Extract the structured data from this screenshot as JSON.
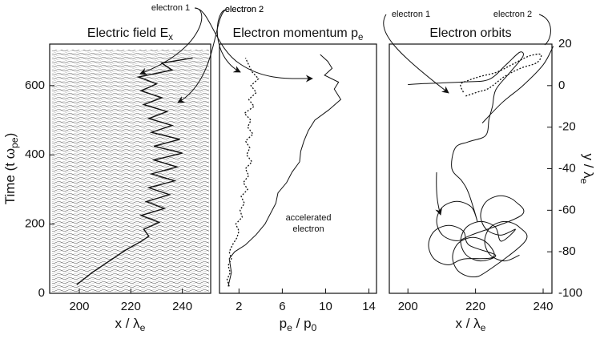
{
  "chart_data": [
    {
      "type": "line",
      "title": [
        {
          "text": "Electric field  E"
        },
        {
          "text": "x",
          "sub": true
        }
      ],
      "xlabel": [
        {
          "text": "x / λ"
        },
        {
          "text": "e",
          "sub": true
        }
      ],
      "ylabel": [
        {
          "text": "Time  (t ω"
        },
        {
          "text": "pe",
          "sub": true
        },
        {
          "text": ")"
        }
      ],
      "xlim": [
        188.5,
        251
      ],
      "ylim": [
        0,
        720
      ],
      "xticks": [
        200,
        220,
        240
      ],
      "yticks": [
        0,
        200,
        400,
        600
      ],
      "yaxis_side": "left",
      "background": "field",
      "annotations": [
        "electron 1",
        "electron 2"
      ],
      "series": [
        {
          "color": "#111111",
          "width": 1.4,
          "dash": false,
          "x": [
            199,
            205,
            212,
            218,
            224,
            227,
            225,
            231,
            224,
            233,
            226,
            235,
            227,
            237,
            228,
            238,
            229,
            240,
            229,
            239,
            228,
            236,
            227,
            234,
            225,
            232,
            224,
            230,
            223,
            236,
            232,
            244
          ],
          "values": [
            25,
            60,
            95,
            125,
            150,
            165,
            185,
            205,
            225,
            245,
            265,
            285,
            305,
            325,
            345,
            365,
            385,
            405,
            425,
            445,
            465,
            485,
            505,
            525,
            545,
            565,
            585,
            605,
            625,
            645,
            665,
            680
          ]
        }
      ]
    },
    {
      "type": "line",
      "title": [
        {
          "text": "Electron momentum p"
        },
        {
          "text": "e",
          "sub": true
        }
      ],
      "xlabel": [
        {
          "text": "p"
        },
        {
          "text": "e",
          "sub": true
        },
        {
          "text": " / p"
        },
        {
          "text": "0",
          "sub": true
        }
      ],
      "xlim": [
        0.2,
        14.7
      ],
      "ylim": [
        0,
        720
      ],
      "xticks": [
        2,
        6,
        10,
        14
      ],
      "yticks": [],
      "yaxis_side": "left",
      "annotations": [
        "electron 2",
        "accelerated",
        "electron"
      ],
      "series": [
        {
          "color": "#111111",
          "width": 1.3,
          "dash": true,
          "x": [
            1.1,
            0.9,
            1.2,
            1.0,
            1.3,
            1.1,
            1.4,
            1.8,
            2.0,
            1.7,
            2.3,
            2.1,
            2.5,
            2.2,
            2.8,
            2.4,
            2.9,
            2.6,
            3.2,
            2.7,
            3.0,
            2.6,
            3.3,
            2.8,
            3.1,
            2.5,
            3.4,
            2.9,
            3.6,
            3.1,
            3.8,
            3.2,
            2.9,
            2.6
          ],
          "values": [
            20,
            40,
            60,
            80,
            100,
            120,
            140,
            160,
            180,
            200,
            220,
            240,
            260,
            280,
            300,
            320,
            340,
            360,
            380,
            400,
            420,
            440,
            460,
            480,
            500,
            520,
            540,
            560,
            580,
            600,
            620,
            640,
            660,
            680
          ]
        },
        {
          "color": "#111111",
          "width": 1,
          "dash": false,
          "x": [
            1.0,
            1.3,
            1.1,
            1.6,
            2.6,
            3.6,
            4.4,
            4.9,
            5.4,
            5.6,
            6.4,
            6.9,
            7.6,
            7.7,
            8.0,
            8.4,
            9.0,
            10.3,
            11.4,
            10.8,
            11.2,
            9.9,
            10.6,
            10.2,
            9.5
          ],
          "values": [
            20,
            60,
            100,
            120,
            140,
            170,
            200,
            230,
            260,
            290,
            320,
            350,
            380,
            410,
            440,
            470,
            500,
            530,
            560,
            590,
            610,
            630,
            650,
            670,
            690
          ]
        }
      ]
    },
    {
      "type": "line",
      "title": [
        {
          "text": "Electron orbits"
        }
      ],
      "xlabel": [
        {
          "text": "x / λ"
        },
        {
          "text": "e",
          "sub": true
        }
      ],
      "ylabel": [
        {
          "text": "y / λ"
        },
        {
          "text": "e",
          "sub": true
        }
      ],
      "xlim": [
        194.5,
        242.6
      ],
      "ylim": [
        -100,
        20
      ],
      "xticks": [
        200,
        220,
        240
      ],
      "yticks": [
        20,
        0,
        -20,
        -40,
        -60,
        -80,
        -100
      ],
      "yaxis_side": "right",
      "annotations": [
        "electron 1",
        "electron 2"
      ],
      "series": [
        {
          "color": "#111111",
          "width": 1,
          "dash": false,
          "smooth": true,
          "x": [
            200,
            205,
            210,
            217,
            224,
            229,
            233,
            234,
            230,
            226,
            225,
            224,
            223,
            218,
            214,
            213,
            216,
            218,
            220.5,
            218.8,
            214.5,
            210.2,
            208.5,
            210.2,
            214.5,
            218.8,
            233.5,
            231.8,
            227.5,
            223.2,
            221.5,
            223.2,
            227.5,
            231.8,
            227.6,
            225.9,
            221.6,
            217.3,
            215.6,
            217.3,
            221.6,
            225.9,
            218.1,
            216.4,
            212.1,
            207.8,
            206.1,
            207.8,
            212.1,
            216.4,
            225.2,
            223.5,
            219.2,
            214.9,
            213.2,
            214.9,
            219.2,
            223.5,
            234.7,
            233,
            228.7,
            224.4,
            222.7,
            224.4,
            228.7,
            233
          ],
          "values": [
            0.5,
            1,
            1.3,
            1.8,
            3,
            10,
            16,
            14,
            6,
            -2,
            -10,
            -16,
            -24,
            -27,
            -30,
            -40,
            -46,
            -52,
            -65.2,
            -58.5,
            -55.7,
            -58.5,
            -65.2,
            -71.9,
            -74.7,
            -71.9,
            -62.5,
            -55.8,
            -53,
            -55.8,
            -62.5,
            -69.2,
            -72,
            -69.2,
            -74.9,
            -68.2,
            -65.4,
            -68.2,
            -74.9,
            -81.6,
            -84.4,
            -81.6,
            -76.8,
            -70.1,
            -67.3,
            -70.1,
            -76.8,
            -83.5,
            -86.3,
            -83.5,
            -82.6,
            -75.9,
            -73.1,
            -75.9,
            -82.6,
            -89.3,
            -92.1,
            -89.3,
            -74.9,
            -68.2,
            -65.4,
            -68.2,
            -74.9,
            -81.6,
            -84.4,
            -81.6
          ]
        },
        {
          "color": "#111111",
          "width": 1,
          "dash": false,
          "smooth": true,
          "x": [
            222,
            228,
            234,
            240,
            243
          ],
          "values": [
            -18,
            -8,
            0,
            10,
            19
          ]
        },
        {
          "color": "#111111",
          "width": 1.3,
          "dash": true,
          "smooth": true,
          "x": [
            216.4,
            215.6,
            218,
            221.6,
            226.3,
            231,
            235.8,
            239.3,
            238.2,
            233.4,
            228.7,
            223.9,
            220.4,
            216.8
          ],
          "values": [
            -3.2,
            0.6,
            2.6,
            4.5,
            6.5,
            10.3,
            14.2,
            15,
            11.1,
            8.4,
            4.5,
            -1.3,
            -3.2,
            -5.2
          ]
        }
      ]
    }
  ]
}
